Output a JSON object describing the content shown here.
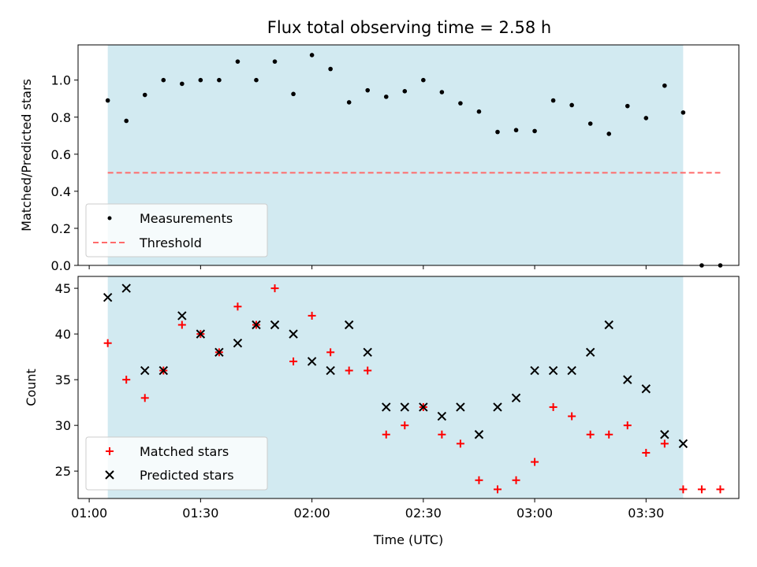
{
  "title": "Flux total observing time = 2.58 h",
  "colors": {
    "shade": "#add8e6",
    "threshold": "#ff6b6b",
    "matched": "#ff0000",
    "predicted": "#000000",
    "measurement": "#000000"
  },
  "chart_data": [
    {
      "type": "scatter",
      "ylabel": "Matched/Predicted stars",
      "ylim": [
        0,
        1.19
      ],
      "yticks": [
        "0.0",
        "0.2",
        "0.4",
        "0.6",
        "0.8",
        "1.0"
      ],
      "shaded_interval": [
        "01:05",
        "03:40"
      ],
      "legend": {
        "placement": "lower-left",
        "entries": [
          "Measurements",
          "Threshold"
        ]
      },
      "series": [
        {
          "name": "Measurements",
          "marker": "dot",
          "x": [
            "01:05",
            "01:10",
            "01:15",
            "01:20",
            "01:25",
            "01:30",
            "01:35",
            "01:40",
            "01:45",
            "01:50",
            "01:55",
            "02:00",
            "02:05",
            "02:10",
            "02:15",
            "02:20",
            "02:25",
            "02:30",
            "02:35",
            "02:40",
            "02:45",
            "02:50",
            "02:55",
            "03:00",
            "03:05",
            "03:10",
            "03:15",
            "03:20",
            "03:25",
            "03:30",
            "03:35",
            "03:40",
            "03:45",
            "03:50"
          ],
          "y": [
            0.89,
            0.78,
            0.92,
            1.0,
            0.98,
            1.0,
            1.0,
            1.1,
            1.0,
            1.1,
            0.925,
            1.135,
            1.06,
            0.88,
            0.945,
            0.91,
            0.94,
            1.0,
            0.935,
            0.875,
            0.83,
            0.72,
            0.73,
            0.725,
            0.89,
            0.865,
            0.765,
            0.71,
            0.86,
            0.795,
            0.97,
            0.825,
            0.0,
            0.0
          ]
        },
        {
          "name": "Threshold",
          "marker": "dashed-line",
          "x": [
            "01:05",
            "03:50"
          ],
          "y": [
            0.5,
            0.5
          ]
        }
      ]
    },
    {
      "type": "scatter",
      "ylabel": "Count",
      "xlabel": "Time (UTC)",
      "ylim": [
        22,
        46.3
      ],
      "yticks": [
        "25",
        "30",
        "35",
        "40",
        "45"
      ],
      "xticks": [
        "01:00",
        "01:30",
        "02:00",
        "02:30",
        "03:00",
        "03:30"
      ],
      "shaded_interval": [
        "01:05",
        "03:40"
      ],
      "legend": {
        "placement": "lower-left",
        "entries": [
          "Matched stars",
          "Predicted stars"
        ]
      },
      "series": [
        {
          "name": "Matched stars",
          "marker": "plus",
          "x": [
            "01:05",
            "01:10",
            "01:15",
            "01:20",
            "01:25",
            "01:30",
            "01:35",
            "01:40",
            "01:45",
            "01:50",
            "01:55",
            "02:00",
            "02:05",
            "02:10",
            "02:15",
            "02:20",
            "02:25",
            "02:30",
            "02:35",
            "02:40",
            "02:45",
            "02:50",
            "02:55",
            "03:00",
            "03:05",
            "03:10",
            "03:15",
            "03:20",
            "03:25",
            "03:30",
            "03:35",
            "03:40",
            "03:45",
            "03:50"
          ],
          "y": [
            39,
            35,
            33,
            36,
            41,
            40,
            38,
            43,
            41,
            45,
            37,
            42,
            38,
            36,
            36,
            29,
            30,
            32,
            29,
            28,
            24,
            23,
            24,
            26,
            32,
            31,
            29,
            29,
            30,
            27,
            28,
            23,
            23,
            23
          ]
        },
        {
          "name": "Predicted stars",
          "marker": "x",
          "x": [
            "01:05",
            "01:10",
            "01:15",
            "01:20",
            "01:25",
            "01:30",
            "01:35",
            "01:40",
            "01:45",
            "01:50",
            "01:55",
            "02:00",
            "02:05",
            "02:10",
            "02:15",
            "02:20",
            "02:25",
            "02:30",
            "02:35",
            "02:40",
            "02:45",
            "02:50",
            "02:55",
            "03:00",
            "03:05",
            "03:10",
            "03:15",
            "03:20",
            "03:25",
            "03:30",
            "03:35",
            "03:40"
          ],
          "y": [
            44,
            45,
            36,
            36,
            42,
            40,
            38,
            39,
            41,
            41,
            40,
            37,
            36,
            41,
            38,
            32,
            32,
            32,
            31,
            32,
            29,
            32,
            33,
            36,
            36,
            36,
            38,
            41,
            35,
            34,
            29,
            28
          ]
        }
      ]
    }
  ]
}
